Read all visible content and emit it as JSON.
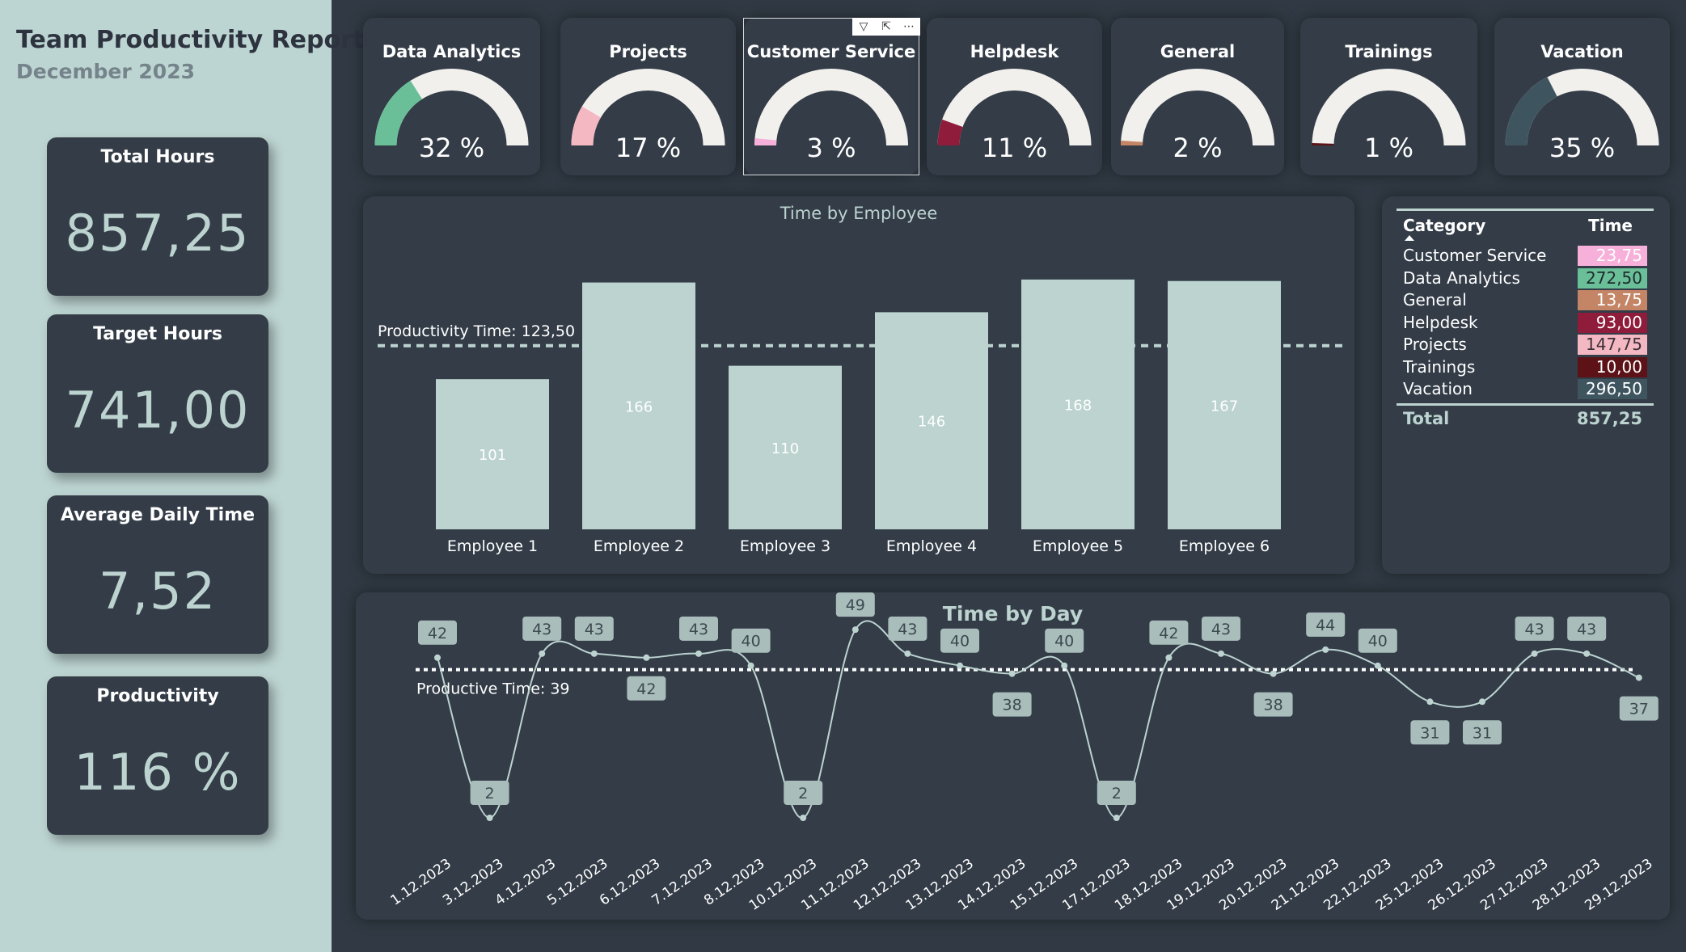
{
  "header": {
    "title": "Team Productivity Report",
    "subtitle": "December 2023"
  },
  "kpis": [
    {
      "label": "Total Hours",
      "value": "857,25"
    },
    {
      "label": "Target Hours",
      "value": "741,00"
    },
    {
      "label": "Average Daily Time",
      "value": "7,52"
    },
    {
      "label": "Productivity",
      "value": "116 %"
    }
  ],
  "gauges": [
    {
      "title": "Data Analytics",
      "label": "32 %",
      "percent": 32,
      "color": "#6abf98"
    },
    {
      "title": "Projects",
      "label": "17 %",
      "percent": 17,
      "color": "#f4b8c3"
    },
    {
      "title": "Customer Service",
      "label": "3 %",
      "percent": 3,
      "color": "#f7b0d9"
    },
    {
      "title": "Helpdesk",
      "label": "11 %",
      "percent": 11,
      "color": "#8e1c3a"
    },
    {
      "title": "General",
      "label": "2 %",
      "percent": 2,
      "color": "#c48566"
    },
    {
      "title": "Trainings",
      "label": "1 %",
      "percent": 1,
      "color": "#5c1216"
    },
    {
      "title": "Vacation",
      "label": "35 %",
      "percent": 35,
      "color": "#3e5560"
    }
  ],
  "visual_header_icons": [
    "filter-icon",
    "focus-mode-icon",
    "more-options-icon"
  ],
  "table": {
    "headers": [
      "Category",
      "Time"
    ],
    "rows": [
      {
        "category": "Customer Service",
        "time": "23,75",
        "bg": "#f7b0d9",
        "fg": "#ffffff"
      },
      {
        "category": "Data Analytics",
        "time": "272,50",
        "bg": "#6abf98",
        "fg": "#1e2a2e"
      },
      {
        "category": "General",
        "time": "13,75",
        "bg": "#c48566",
        "fg": "#ffffff"
      },
      {
        "category": "Helpdesk",
        "time": "93,00",
        "bg": "#8e1c3a",
        "fg": "#ffffff"
      },
      {
        "category": "Projects",
        "time": "147,75",
        "bg": "#f4b8c3",
        "fg": "#3a2f35"
      },
      {
        "category": "Trainings",
        "time": "10,00",
        "bg": "#5c1216",
        "fg": "#ffffff"
      },
      {
        "category": "Vacation",
        "time": "296,50",
        "bg": "#3e5560",
        "fg": "#ffffff"
      }
    ],
    "total_label": "Total",
    "total_value": "857,25"
  },
  "chart_data": [
    {
      "type": "bar",
      "title": "Time by Employee",
      "categories": [
        "Employee 1",
        "Employee 2",
        "Employee 3",
        "Employee 4",
        "Employee 5",
        "Employee 6"
      ],
      "values": [
        101,
        166,
        110,
        146,
        168,
        167
      ],
      "data_labels": [
        "101",
        "166",
        "110",
        "146",
        "168",
        "167"
      ],
      "reference_line": {
        "label": "Productivity Time: 123,50",
        "value": 123.5
      },
      "bar_color": "#bcd3d0",
      "ylim": [
        0,
        175
      ]
    },
    {
      "type": "line",
      "title": "Time by Day",
      "x": [
        "1.12.2023",
        "3.12.2023",
        "4.12.2023",
        "5.12.2023",
        "6.12.2023",
        "7.12.2023",
        "8.12.2023",
        "10.12.2023",
        "11.12.2023",
        "12.12.2023",
        "13.12.2023",
        "14.12.2023",
        "15.12.2023",
        "17.12.2023",
        "18.12.2023",
        "19.12.2023",
        "20.12.2023",
        "21.12.2023",
        "22.12.2023",
        "25.12.2023",
        "26.12.2023",
        "27.12.2023",
        "28.12.2023",
        "29.12.2023"
      ],
      "values": [
        42,
        2,
        43,
        43,
        42,
        43,
        40,
        2,
        49,
        43,
        40,
        38,
        40,
        2,
        42,
        43,
        38,
        44,
        40,
        31,
        31,
        43,
        43,
        37
      ],
      "reference_line": {
        "label": "Productive Time: 39",
        "value": 39
      },
      "line_color": "#bcd3d0",
      "ylim": [
        0,
        50
      ]
    }
  ]
}
